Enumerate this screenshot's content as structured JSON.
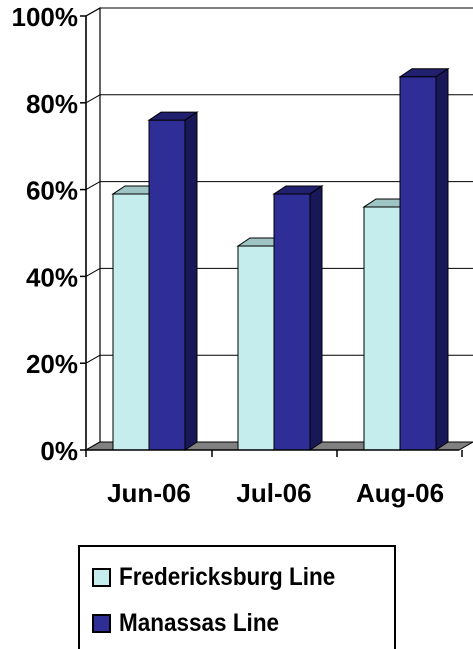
{
  "chart_data": {
    "type": "bar",
    "categories": [
      "Jun-06",
      "Jul-06",
      "Aug-06"
    ],
    "series": [
      {
        "name": "Fredericksburg Line",
        "values": [
          59,
          47,
          56
        ],
        "color": "#c5eded"
      },
      {
        "name": "Manassas Line",
        "values": [
          76,
          59,
          86
        ],
        "color": "#2e2e96"
      }
    ],
    "ylim": [
      0,
      100
    ],
    "yticks": [
      "0%",
      "20%",
      "40%",
      "60%",
      "80%",
      "100%"
    ],
    "xlabel": "",
    "ylabel": "",
    "grid": true,
    "legend_position": "bottom",
    "style": "3d-clustered-column"
  }
}
